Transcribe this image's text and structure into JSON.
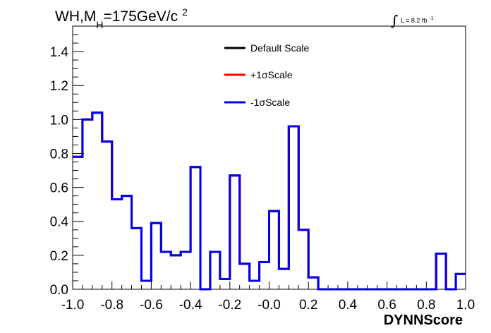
{
  "chart_data": {
    "type": "histogram-step",
    "title": {
      "prefix": "WH,M",
      "subscript": "H",
      "suffix": "=175GeV/c",
      "superscript": "2"
    },
    "luminosity": {
      "integral_symbol": "∫",
      "text": "L = 8.2 fb",
      "superscript": "-1"
    },
    "xlabel": "DYNNScore",
    "ylabel": "",
    "xlim": [
      -1.0,
      1.0
    ],
    "ylim": [
      0.0,
      1.55
    ],
    "x_ticks": [
      {
        "value": -1.0,
        "label": "-1.0"
      },
      {
        "value": -0.8,
        "label": "-0.8"
      },
      {
        "value": -0.6,
        "label": "-0.6"
      },
      {
        "value": -0.4,
        "label": "-0.4"
      },
      {
        "value": -0.2,
        "label": "-0.2"
      },
      {
        "value": 0.0,
        "label": "-0.0"
      },
      {
        "value": 0.2,
        "label": "0.2"
      },
      {
        "value": 0.4,
        "label": "0.4"
      },
      {
        "value": 0.6,
        "label": "0.6"
      },
      {
        "value": 0.8,
        "label": "0.8"
      },
      {
        "value": 1.0,
        "label": "1.0"
      }
    ],
    "y_ticks": [
      {
        "value": 0.0,
        "label": "0.0"
      },
      {
        "value": 0.2,
        "label": "0.2"
      },
      {
        "value": 0.4,
        "label": "0.4"
      },
      {
        "value": 0.6,
        "label": "0.6"
      },
      {
        "value": 0.8,
        "label": "0.8"
      },
      {
        "value": 1.0,
        "label": "1.0"
      },
      {
        "value": 1.2,
        "label": "1.2"
      },
      {
        "value": 1.4,
        "label": "1.4"
      }
    ],
    "bin_edges": [
      -1.0,
      -0.95,
      -0.9,
      -0.85,
      -0.8,
      -0.75,
      -0.7,
      -0.65,
      -0.6,
      -0.55,
      -0.5,
      -0.45,
      -0.4,
      -0.35,
      -0.3,
      -0.25,
      -0.2,
      -0.15,
      -0.1,
      -0.05,
      0.0,
      0.05,
      0.1,
      0.15,
      0.2,
      0.25,
      0.3,
      0.35,
      0.4,
      0.45,
      0.5,
      0.55,
      0.6,
      0.65,
      0.7,
      0.75,
      0.8,
      0.85,
      0.9,
      0.95,
      1.0
    ],
    "series": [
      {
        "name": "Default Scale",
        "color": "#000000",
        "values": [
          0.78,
          1.0,
          1.04,
          0.87,
          0.53,
          0.55,
          0.36,
          0.05,
          0.39,
          0.22,
          0.2,
          0.22,
          0.72,
          0.0,
          0.22,
          0.06,
          0.67,
          0.15,
          0.05,
          0.16,
          0.46,
          0.12,
          0.96,
          0.35,
          0.07,
          0.0,
          0.0,
          0.0,
          0.0,
          0.0,
          0.0,
          0.0,
          0.0,
          0.0,
          0.0,
          0.0,
          0.0,
          0.21,
          0.0,
          0.09
        ]
      },
      {
        "name": "+1σScale",
        "color": "#ff0000",
        "values": [
          0.78,
          1.0,
          1.04,
          0.87,
          0.53,
          0.55,
          0.36,
          0.05,
          0.39,
          0.22,
          0.2,
          0.22,
          0.72,
          0.0,
          0.22,
          0.06,
          0.67,
          0.15,
          0.05,
          0.16,
          0.46,
          0.12,
          0.96,
          0.35,
          0.07,
          0.0,
          0.0,
          0.0,
          0.0,
          0.0,
          0.0,
          0.0,
          0.0,
          0.0,
          0.0,
          0.0,
          0.0,
          0.21,
          0.0,
          0.09
        ]
      },
      {
        "name": "-1σScale",
        "color": "#0000ee",
        "values": [
          0.78,
          1.0,
          1.04,
          0.87,
          0.53,
          0.55,
          0.36,
          0.05,
          0.39,
          0.22,
          0.2,
          0.22,
          0.72,
          0.0,
          0.22,
          0.06,
          0.67,
          0.15,
          0.05,
          0.16,
          0.46,
          0.12,
          0.96,
          0.35,
          0.07,
          0.0,
          0.0,
          0.0,
          0.0,
          0.0,
          0.0,
          0.0,
          0.0,
          0.0,
          0.0,
          0.0,
          0.0,
          0.21,
          0.0,
          0.09
        ]
      }
    ],
    "legend_position": "top-center",
    "grid": false
  }
}
